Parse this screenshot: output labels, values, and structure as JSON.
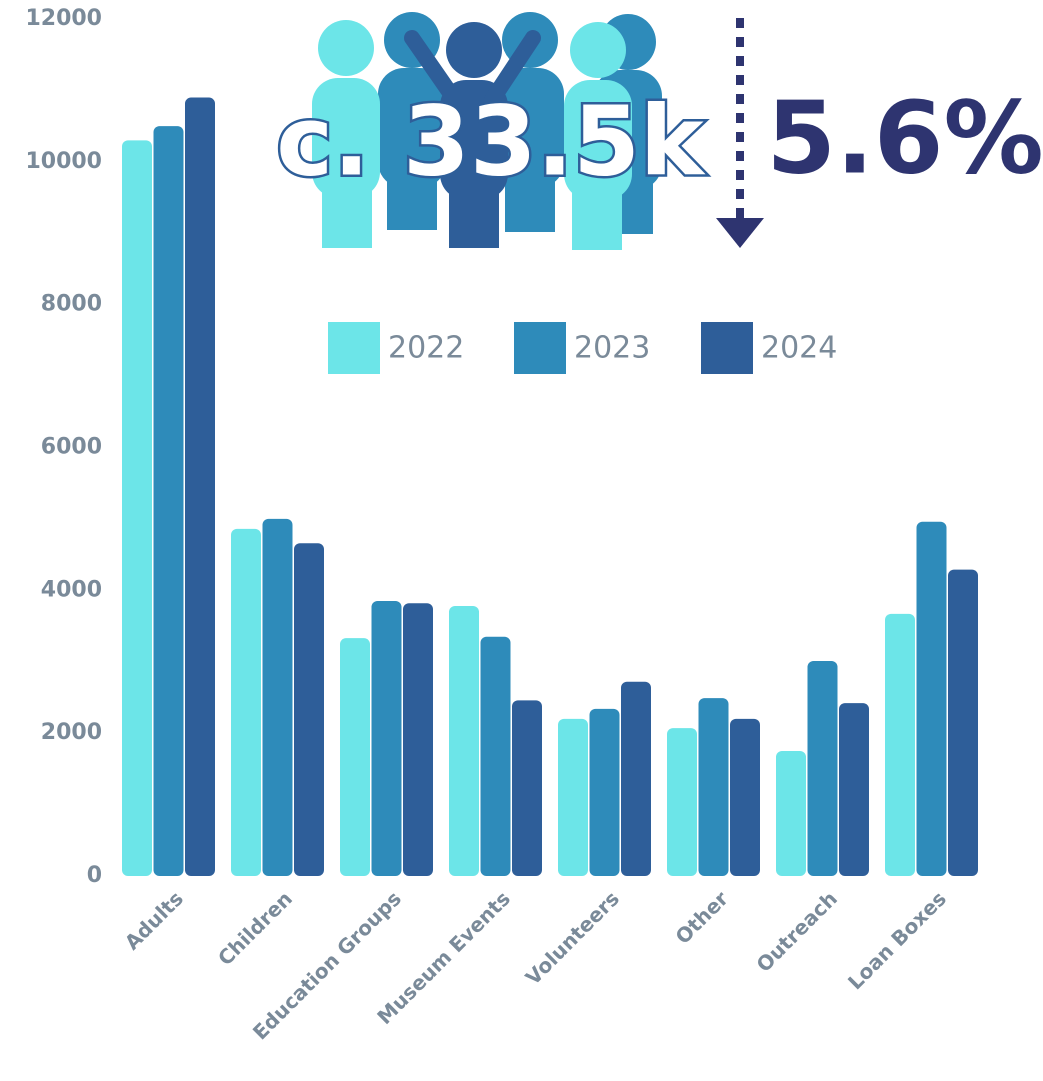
{
  "chart_data": {
    "type": "bar",
    "annotations": [
      "c. 33.5k",
      "5.6%"
    ],
    "categories": [
      "Adults",
      "Children",
      "Education Groups",
      "Museum Events",
      "Volunteers",
      "Other",
      "Outreach",
      "Loan Boxes"
    ],
    "series": [
      {
        "name": "2022",
        "color": "#6ce5e8",
        "values": [
          10300,
          4860,
          3330,
          3780,
          2200,
          2070,
          1750,
          3670
        ]
      },
      {
        "name": "2023",
        "color": "#2e8bba",
        "values": [
          10500,
          5000,
          3850,
          3350,
          2340,
          2490,
          3010,
          4960
        ]
      },
      {
        "name": "2024",
        "color": "#2e5e99",
        "values": [
          10900,
          4660,
          3820,
          2460,
          2720,
          2200,
          2420,
          4290
        ]
      }
    ],
    "ylim": [
      0,
      12000
    ],
    "yticks": [
      0,
      2000,
      4000,
      6000,
      8000,
      10000,
      12000
    ],
    "grid": false
  }
}
